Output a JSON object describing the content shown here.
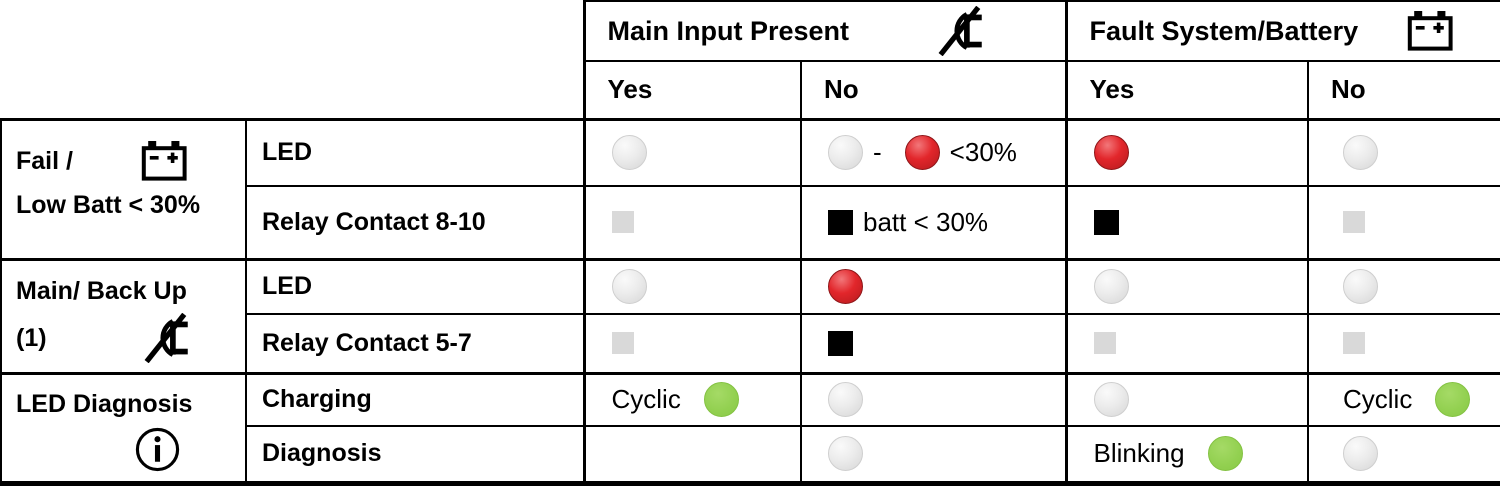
{
  "table": {
    "header": {
      "groups": [
        {
          "label": "Main Input Present",
          "icon": "no-mains-icon"
        },
        {
          "label": "Fault System/Battery",
          "icon": "battery-icon"
        }
      ],
      "sub_columns": [
        "Yes",
        "No",
        "Yes",
        "No"
      ]
    },
    "row_groups": [
      {
        "label_line1": "Fail /",
        "label_line2": "Low Batt < 30%",
        "icon": "battery-icon",
        "rows": [
          {
            "label": "LED",
            "cells": [
              [
                {
                  "type": "led",
                  "color": "gray"
                }
              ],
              [
                {
                  "type": "led",
                  "color": "gray"
                },
                {
                  "type": "text",
                  "value": "-"
                },
                {
                  "type": "led",
                  "color": "red"
                },
                {
                  "type": "text",
                  "value": "<30%"
                }
              ],
              [
                {
                  "type": "led",
                  "color": "red"
                }
              ],
              [
                {
                  "type": "led",
                  "color": "gray"
                }
              ]
            ]
          },
          {
            "label": "Relay Contact 8-10",
            "cells": [
              [
                {
                  "type": "square",
                  "color": "gray"
                }
              ],
              [
                {
                  "type": "square",
                  "color": "black"
                },
                {
                  "type": "text",
                  "value": "batt < 30%"
                }
              ],
              [
                {
                  "type": "square",
                  "color": "black"
                }
              ],
              [
                {
                  "type": "square",
                  "color": "gray"
                }
              ]
            ]
          }
        ]
      },
      {
        "label_line1": "Main/ Back Up",
        "label_line2": "(1)",
        "icon": "no-mains-icon",
        "rows": [
          {
            "label": "LED",
            "cells": [
              [
                {
                  "type": "led",
                  "color": "gray"
                }
              ],
              [
                {
                  "type": "led",
                  "color": "red"
                }
              ],
              [
                {
                  "type": "led",
                  "color": "gray"
                }
              ],
              [
                {
                  "type": "led",
                  "color": "gray"
                }
              ]
            ]
          },
          {
            "label": "Relay Contact 5-7",
            "cells": [
              [
                {
                  "type": "square",
                  "color": "gray"
                }
              ],
              [
                {
                  "type": "square",
                  "color": "black"
                }
              ],
              [
                {
                  "type": "square",
                  "color": "gray"
                }
              ],
              [
                {
                  "type": "square",
                  "color": "gray"
                }
              ]
            ]
          }
        ]
      },
      {
        "label_line1": "LED Diagnosis",
        "label_line2": "",
        "icon": "info-icon",
        "rows": [
          {
            "label": "Charging",
            "cells": [
              [
                {
                  "type": "text",
                  "value": "Cyclic"
                },
                {
                  "type": "led",
                  "color": "green"
                }
              ],
              [
                {
                  "type": "led",
                  "color": "gray"
                }
              ],
              [
                {
                  "type": "led",
                  "color": "gray"
                }
              ],
              [
                {
                  "type": "text",
                  "value": "Cyclic"
                },
                {
                  "type": "led",
                  "color": "green"
                }
              ]
            ]
          },
          {
            "label": "Diagnosis",
            "cells": [
              [],
              [
                {
                  "type": "led",
                  "color": "gray"
                }
              ],
              [
                {
                  "type": "text",
                  "value": "Blinking"
                },
                {
                  "type": "led",
                  "color": "green"
                }
              ],
              [
                {
                  "type": "led",
                  "color": "gray"
                }
              ]
            ]
          }
        ]
      }
    ]
  },
  "colors": {
    "border": "#000000",
    "led_gray": "#e9e9e9",
    "led_red": "#dd2025",
    "led_green": "#92d050",
    "square_gray": "#d9d9d9",
    "square_black": "#000000"
  }
}
